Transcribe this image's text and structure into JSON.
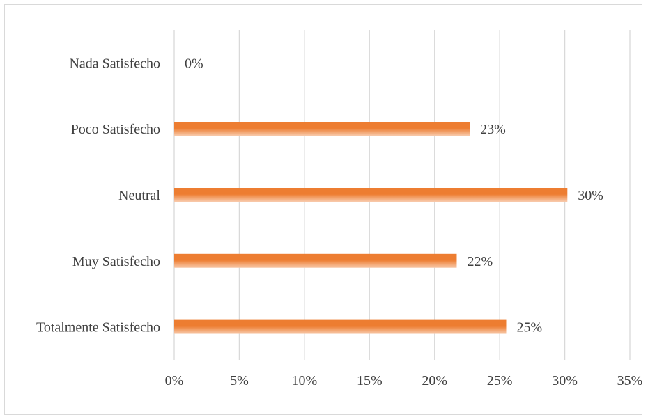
{
  "chart_data": {
    "type": "bar",
    "orientation": "horizontal",
    "categories": [
      "Nada Satisfecho",
      "Poco Satisfecho",
      "Neutral",
      "Muy Satisfecho",
      "Totalmente Satisfecho"
    ],
    "values": [
      0,
      0.227,
      0.302,
      0.217,
      0.255
    ],
    "data_labels": [
      "0%",
      "23%",
      "30%",
      "22%",
      "25%"
    ],
    "x_ticks": [
      0,
      0.05,
      0.1,
      0.15,
      0.2,
      0.25,
      0.3,
      0.35
    ],
    "x_tick_labels": [
      "0%",
      "5%",
      "10%",
      "15%",
      "20%",
      "25%",
      "30%",
      "35%"
    ],
    "xlim": [
      0,
      0.35
    ],
    "title": "",
    "xlabel": "",
    "ylabel": "",
    "grid": "vertical",
    "legend": "none",
    "colors": {
      "bar_dark": "#ed7d31",
      "bar_light": "#f8cbad",
      "grid": "#d9d9d9",
      "text": "#404040"
    }
  }
}
